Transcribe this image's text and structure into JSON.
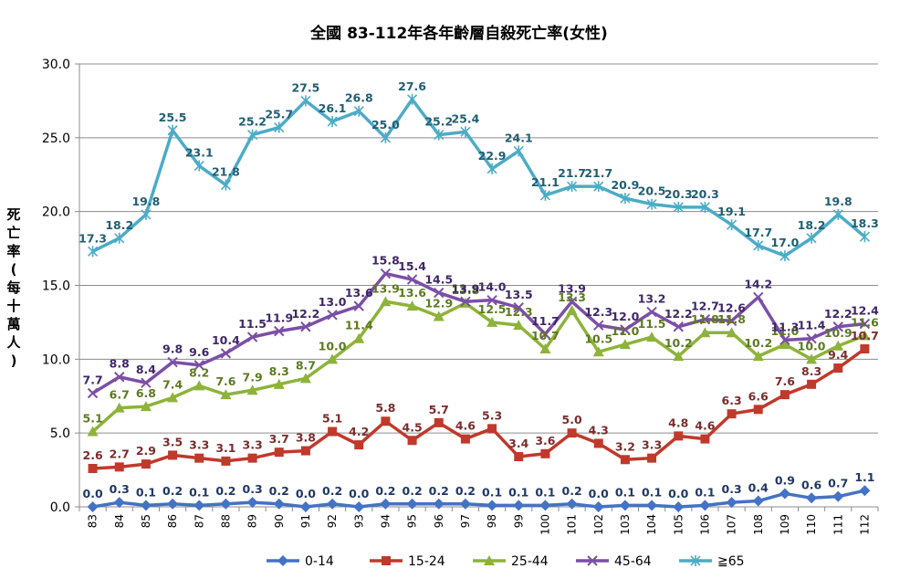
{
  "chart_data": {
    "type": "line",
    "title": "全國 83-112年各年齡層自殺死亡率(女性)",
    "xlabel": "",
    "ylabel": "死亡率(每十萬人)",
    "ylim": [
      0,
      30
    ],
    "yticks": [
      "0.0",
      "5.0",
      "10.0",
      "15.0",
      "20.0",
      "25.0",
      "30.0"
    ],
    "grid": true,
    "legend": "bottom",
    "categories": [
      "83",
      "84",
      "85",
      "86",
      "87",
      "88",
      "89",
      "90",
      "91",
      "92",
      "93",
      "94",
      "95",
      "96",
      "97",
      "98",
      "99",
      "100",
      "101",
      "102",
      "103",
      "104",
      "105",
      "106",
      "107",
      "108",
      "109",
      "110",
      "111",
      "112"
    ],
    "series": [
      {
        "name": "0-14",
        "color": "#4472C4",
        "marker": "diamond",
        "values": [
          0.0,
          0.3,
          0.1,
          0.2,
          0.1,
          0.2,
          0.3,
          0.2,
          0.0,
          0.2,
          0.0,
          0.2,
          0.2,
          0.2,
          0.2,
          0.1,
          0.1,
          0.1,
          0.2,
          0.0,
          0.1,
          0.1,
          0.0,
          0.1,
          0.3,
          0.4,
          0.9,
          0.6,
          0.7,
          1.1
        ]
      },
      {
        "name": "15-24",
        "color": "#C0392B",
        "marker": "square",
        "values": [
          2.6,
          2.7,
          2.9,
          3.5,
          3.3,
          3.1,
          3.3,
          3.7,
          3.8,
          5.1,
          4.2,
          5.8,
          4.5,
          5.7,
          4.6,
          5.3,
          3.4,
          3.6,
          5.0,
          4.3,
          3.2,
          3.3,
          4.8,
          4.6,
          6.3,
          6.6,
          7.6,
          8.3,
          9.4,
          10.7
        ]
      },
      {
        "name": "25-44",
        "color": "#8DB33A",
        "marker": "triangle",
        "values": [
          5.1,
          6.7,
          6.8,
          7.4,
          8.2,
          7.6,
          7.9,
          8.3,
          8.7,
          10.0,
          11.4,
          13.9,
          13.6,
          12.9,
          13.8,
          12.5,
          12.3,
          10.7,
          13.3,
          10.5,
          11.0,
          11.5,
          10.2,
          11.8,
          11.8,
          10.2,
          11.0,
          10.0,
          10.9,
          11.6
        ]
      },
      {
        "name": "45-64",
        "color": "#7B4FA6",
        "marker": "x",
        "values": [
          7.7,
          8.8,
          8.4,
          9.8,
          9.6,
          10.4,
          11.5,
          11.9,
          12.2,
          13.0,
          13.6,
          15.8,
          15.4,
          14.5,
          13.9,
          14.0,
          13.5,
          11.7,
          13.9,
          12.3,
          12.0,
          13.2,
          12.2,
          12.7,
          12.6,
          14.2,
          11.3,
          11.4,
          12.2,
          12.4
        ]
      },
      {
        "name": "≧65",
        "color": "#4BACC6",
        "marker": "star",
        "values": [
          17.3,
          18.2,
          19.8,
          25.5,
          23.1,
          21.8,
          25.2,
          25.7,
          27.5,
          26.1,
          26.8,
          25.0,
          27.6,
          25.2,
          25.4,
          22.9,
          24.1,
          21.1,
          21.7,
          21.7,
          20.9,
          20.5,
          20.3,
          20.3,
          19.1,
          17.7,
          17.0,
          18.2,
          19.8,
          18.3
        ]
      }
    ]
  }
}
